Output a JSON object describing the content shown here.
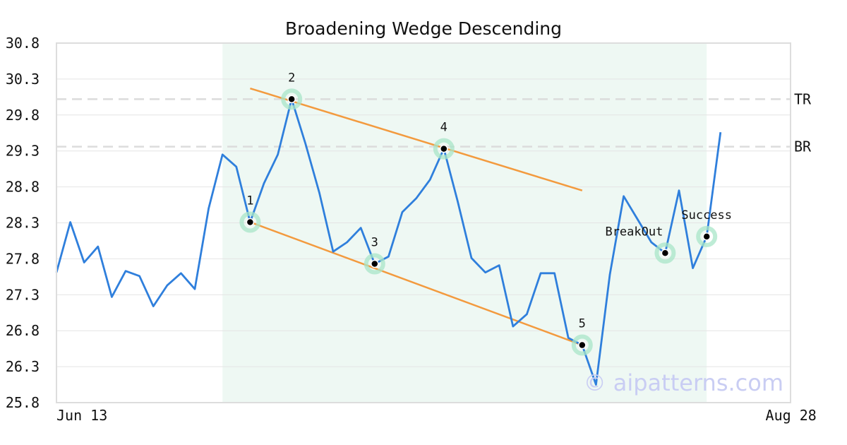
{
  "chart_data": {
    "type": "line",
    "title": "Broadening Wedge Descending",
    "xlabel": "",
    "ylabel": "",
    "ylim": [
      25.8,
      30.8
    ],
    "y_ticks": [
      "30.8",
      "30.3",
      "29.8",
      "29.3",
      "28.8",
      "28.3",
      "27.8",
      "27.3",
      "26.8",
      "26.3",
      "25.8"
    ],
    "x_ticks": [
      {
        "label": "Jun 13",
        "index": 0
      },
      {
        "label": "Aug 28",
        "index": 53
      }
    ],
    "grid": "horizontal",
    "series": [
      {
        "color": "#2f7fdc",
        "values": [
          27.61,
          28.31,
          27.75,
          27.97,
          27.27,
          27.63,
          27.56,
          27.14,
          27.43,
          27.6,
          27.38,
          28.5,
          29.25,
          29.08,
          28.31,
          28.85,
          29.25,
          30.02,
          29.4,
          28.72,
          27.9,
          28.03,
          28.23,
          27.73,
          27.83,
          28.45,
          28.64,
          28.9,
          29.33,
          28.6,
          27.81,
          27.61,
          27.71,
          26.86,
          27.03,
          27.6,
          27.6,
          26.7,
          26.6,
          26.05,
          27.58,
          28.67,
          28.35,
          28.03,
          27.88,
          28.75,
          27.67,
          28.11,
          29.56
        ]
      }
    ],
    "highlight_range": {
      "from_index": 12,
      "to_index": 47,
      "color": "#eef8f3"
    },
    "pattern_points": [
      {
        "label": "1",
        "index": 14,
        "value": 28.31
      },
      {
        "label": "2",
        "index": 17,
        "value": 30.02
      },
      {
        "label": "3",
        "index": 23,
        "value": 27.73
      },
      {
        "label": "4",
        "index": 28,
        "value": 29.33
      },
      {
        "label": "5",
        "index": 38,
        "value": 26.6
      },
      {
        "label": "BreakOut",
        "index": 44,
        "value": 27.88
      },
      {
        "label": "Success",
        "index": 47,
        "value": 28.11
      }
    ],
    "trendlines": [
      {
        "name": "upper",
        "from": {
          "index": 14,
          "value": 30.17
        },
        "to": {
          "index": 38,
          "value": 28.75
        },
        "color": "#f39a3e"
      },
      {
        "name": "lower",
        "from": {
          "index": 14,
          "value": 28.31
        },
        "to": {
          "index": 38,
          "value": 26.6
        },
        "color": "#f39a3e"
      }
    ],
    "reference_lines": [
      {
        "label": "TR",
        "value": 30.02
      },
      {
        "label": "BR",
        "value": 29.36
      }
    ],
    "watermark": "© aipatterns.com"
  }
}
